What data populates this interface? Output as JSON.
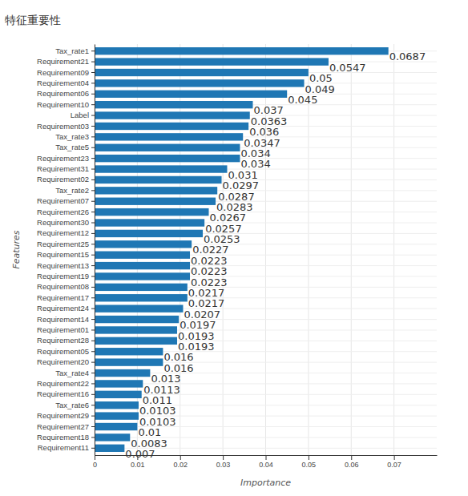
{
  "chart_data": {
    "type": "bar",
    "title": "特征重要性",
    "xlabel": "Importance",
    "ylabel": "Features",
    "orientation": "horizontal",
    "categories": [
      "Tax_rate1",
      "Requirement21",
      "Requirement09",
      "Requirement04",
      "Requirement06",
      "Requirement10",
      "Label",
      "Requirement03",
      "Tax_rate3",
      "Tax_rate5",
      "Requirement23",
      "Requirement31",
      "Requirement02",
      "Tax_rate2",
      "Requirement07",
      "Requirement26",
      "Requirement30",
      "Requirement12",
      "Requirement25",
      "Requirement15",
      "Requirement13",
      "Requirement19",
      "Requirement08",
      "Requirement17",
      "Requirement24",
      "Requirement14",
      "Requirement01",
      "Requirement28",
      "Requirement05",
      "Requirement20",
      "Tax_rate4",
      "Requirement22",
      "Requirement16",
      "Tax_rate6",
      "Requirement29",
      "Requirement27",
      "Requirement18",
      "Requirement11"
    ],
    "values": [
      0.0687,
      0.0547,
      0.05,
      0.049,
      0.045,
      0.037,
      0.0363,
      0.036,
      0.0347,
      0.034,
      0.034,
      0.031,
      0.0297,
      0.0287,
      0.0283,
      0.0267,
      0.0257,
      0.0253,
      0.0227,
      0.0223,
      0.0223,
      0.0223,
      0.0217,
      0.0217,
      0.0207,
      0.0197,
      0.0193,
      0.0193,
      0.016,
      0.016,
      0.013,
      0.0113,
      0.011,
      0.0103,
      0.0103,
      0.01,
      0.0083,
      0.007
    ],
    "color": "#1f77b4",
    "xlim": [
      0,
      0.08
    ],
    "xticks": [
      0,
      0.01,
      0.02,
      0.03,
      0.04,
      0.05,
      0.06,
      0.07
    ],
    "grid": true,
    "data_labels": true
  }
}
